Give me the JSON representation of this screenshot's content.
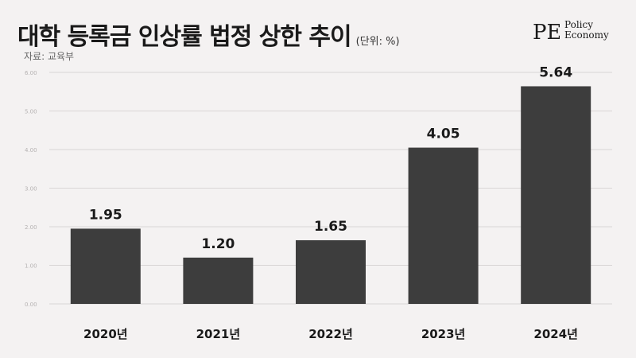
{
  "header": {
    "title": "대학 등록금 인상률 법정 상한 추이",
    "unit": "(단위: %)",
    "source": "자료: 교육부"
  },
  "logo": {
    "mark": "PE",
    "line1": "Policy",
    "line2": "Economy"
  },
  "colors": {
    "bar": "#3d3d3d",
    "gridline": "#d9d6d6",
    "tick_text": "#b5b2b2",
    "label_text": "#1a1a1a",
    "background": "#f4f2f2"
  },
  "chart_data": {
    "type": "bar",
    "title": "대학 등록금 인상률 법정 상한 추이",
    "categories": [
      "2020년",
      "2021년",
      "2022년",
      "2023년",
      "2024년"
    ],
    "values": [
      1.95,
      1.2,
      1.65,
      4.05,
      5.64
    ],
    "data_labels": [
      "1.95",
      "1.20",
      "1.65",
      "4.05",
      "5.64"
    ],
    "y_ticks": [
      "0.00",
      "1.00",
      "2.00",
      "3.00",
      "4.00",
      "5.00",
      "6.00"
    ],
    "ylim": [
      0,
      6
    ],
    "xlabel": "",
    "ylabel": "",
    "grid": true
  }
}
